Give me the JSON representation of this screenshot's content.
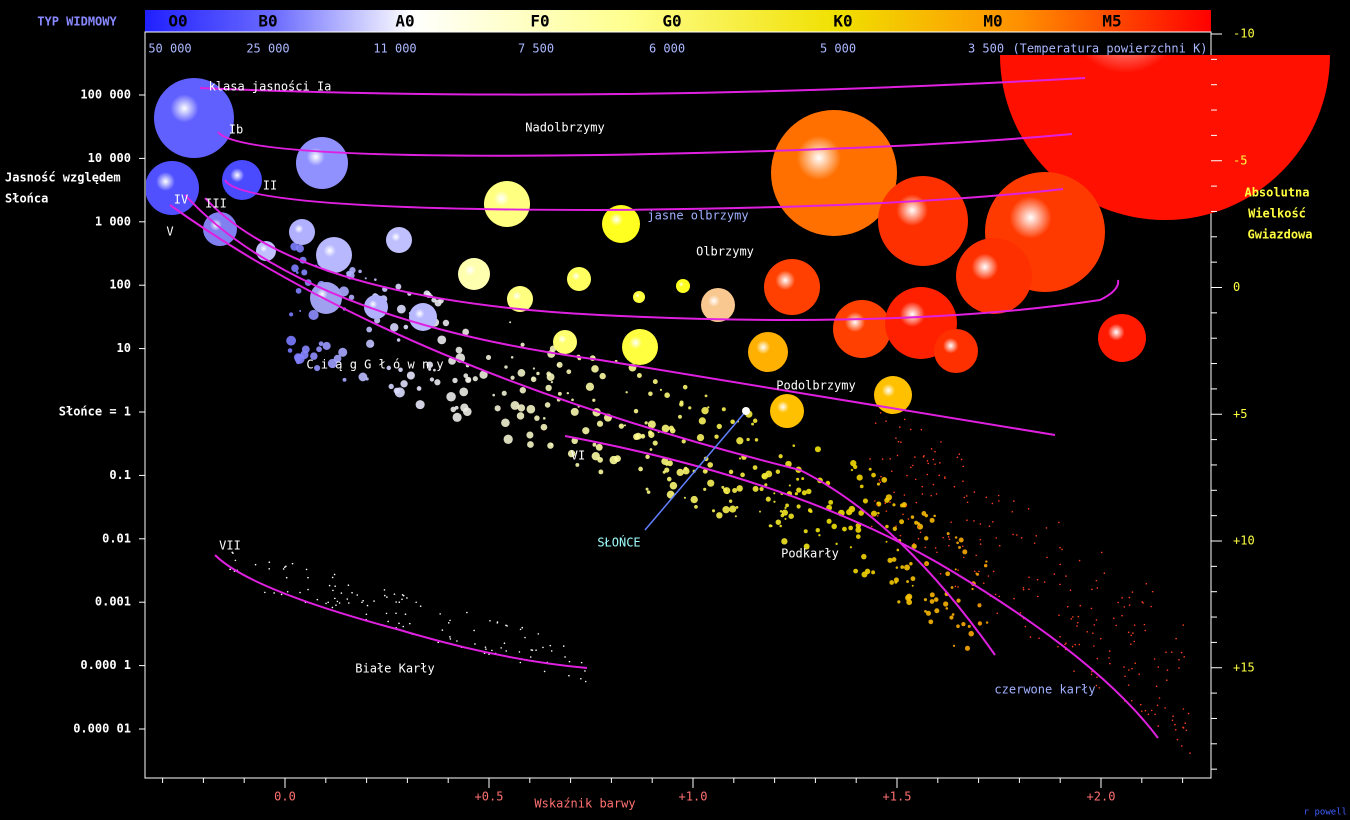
{
  "header": {
    "spectral_label": "TYP WIDMOWY",
    "spectral_types": [
      "O0",
      "B0",
      "A0",
      "F0",
      "G0",
      "K0",
      "M0",
      "M5"
    ],
    "temperatures": [
      "50 000",
      "25 000",
      "11 000",
      "7 500",
      "6 000",
      "5 000",
      "3 500"
    ],
    "temperature_unit": "(Temperatura powierzchni K)"
  },
  "left_axis": {
    "title_lines": [
      "Jasność względem",
      "Słońca"
    ],
    "ticks": [
      "100 000",
      "10 000",
      "1 000",
      "100",
      "10",
      "Słońce = 1",
      "0.1",
      "0.01",
      "0.001",
      "0.000 1",
      "0.000 01"
    ]
  },
  "right_axis": {
    "title_lines": [
      "Absolutna",
      "Wielkość",
      "Gwiazdowa"
    ],
    "ticks": [
      "-10",
      "-5",
      "0",
      "+5",
      "+10",
      "+15"
    ]
  },
  "bottom_axis": {
    "title": "Wskaźnik barwy",
    "ticks": [
      "0.0",
      "+0.5",
      "+1.0",
      "+1.5",
      "+2.0"
    ]
  },
  "labels": [
    "klasa jasności Ia",
    "Ib",
    "II",
    "IV",
    "III",
    "V",
    "Nadolbrzymy",
    "jasne olbrzymy",
    "Olbrzymy",
    "C i ą g   G ł ó w n y",
    "Podolbrzymy",
    "VI",
    "SŁOŃCE",
    "Podkarły",
    "VII",
    "Białe Karły",
    "czerwone karły"
  ],
  "credit": "r powell"
}
